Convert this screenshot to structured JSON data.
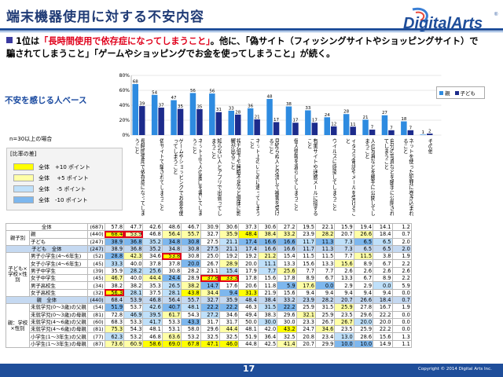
{
  "title": "端末機器使用に対する不安内容",
  "brand": "DigitalArts",
  "brand_reg": "®",
  "lead": {
    "p1": "1位は",
    "h1": "「長時間使用で依存症になってしまうこと」",
    "p2": "。他に、「偽サイト（フィッシングサイトやショッピングサイト）で騙されてしまうこと」「ゲームやショッピングでお金を使ってしまうこと」が続く。"
  },
  "note": "不安を感じる人ベース",
  "n_note": "n=30以上の場合",
  "diff_legend": {
    "title": "[比率の差]",
    "items": [
      {
        "label": "全体　+10 ポイント",
        "color": "#ffff00"
      },
      {
        "label": "全体　 +5 ポイント",
        "color": "#ffffa6"
      },
      {
        "label": "全体　 -5 ポイント",
        "color": "#bfe0fa"
      },
      {
        "label": "全体　-10 ポイント",
        "color": "#7db7ee"
      }
    ]
  },
  "chart_data": {
    "type": "bar",
    "ylim": [
      0,
      80
    ],
    "yticks": [
      "0%",
      "20%",
      "40%",
      "60%",
      "80%"
    ],
    "legend_position": "top-right",
    "series": [
      {
        "name": "親",
        "color": "#2e8be0",
        "values": [
          68.4,
          53.9,
          46.8,
          56.4,
          55.7,
          32.7,
          35.9,
          48.4,
          38.4,
          33.2,
          23.9,
          28.2,
          20.7,
          26.6,
          18.4,
          0.7
        ]
      },
      {
        "name": "子ども",
        "color": "#1c2b8c",
        "values": [
          38.9,
          36.8,
          35.2,
          34.8,
          30.8,
          27.5,
          21.1,
          17.4,
          16.6,
          16.6,
          11.7,
          11.3,
          7.3,
          6.5,
          6.5,
          2.0
        ]
      }
    ],
    "categories": [
      "長時間使用で依存症になってしまうこと",
      "偽サイトで騙されてしまうこと",
      "ゲームやショッピングでお金を使ってしまうこと",
      "ネット上で人の悪口を書いてしまうこと",
      "知らない人とアプリで出会ってしまうこと",
      "視力低下や睡眠不足など健康に影響が出ること",
      "ネット上のいじめに遭ってしまうこと",
      "見知らぬ人と交流して被害を受けること",
      "個人情報を漏らしてしまうこと",
      "有害サイトや迷惑メールに接すること",
      "ウイルスに感染してしまうこと",
      "イタズラ電話やメールを受けること",
      "人の写真などを勝手に公開してしまうこと",
      "自分の写真などを勝手に公開されてしまうこと",
      "ネットを使った犯罪に巻き込まれること",
      "その他"
    ],
    "labels_wrapped": [
      "長時間使用で依存症になってしまうこと",
      "偽サイトで騙されてしまうこと",
      "ゲームやショッピングでお金を使ってしまうこと",
      "ネット上で人の悪口を書いてしまうこと",
      "知らない人とアプリで出会ってしまうこと",
      "視力低下や睡眠不足など健康に影響が出ること",
      "ネット上のいじめに遭ってしまうこと",
      "見知らぬ人と交流して被害を受けること",
      "個人情報を漏らしてしまうこと",
      "有害サイトや迷惑メールに接すること",
      "ウイルスに感染してしまうこと",
      "イタズラ電話やメールを受けること",
      "人の写真などを勝手に公開してしまうこと",
      "自分の写真などを勝手に公開されてしまうこと",
      "ネットを使った犯罪に巻き込まれること",
      "その他"
    ]
  },
  "table": {
    "rows": [
      {
        "group": "",
        "label": "全体",
        "n": "(687)",
        "v": [
          "57.8",
          "47.7",
          "42.6",
          "48.6",
          "46.7",
          "30.9",
          "30.6",
          "37.3",
          "30.6",
          "27.2",
          "19.5",
          "22.1",
          "15.9",
          "19.4",
          "14.1",
          "1.2"
        ],
        "cls": [
          "",
          "",
          "",
          "",
          "",
          "",
          "",
          "",
          "",
          "",
          "",
          "",
          "",
          "",
          "",
          ""
        ],
        "section": false
      },
      {
        "group": "親子別",
        "label": "親",
        "n": "(440)",
        "v": [
          "68.4",
          "53.9",
          "46.8",
          "56.4",
          "55.7",
          "32.7",
          "35.9",
          "48.4",
          "38.4",
          "33.2",
          "23.9",
          "28.2",
          "20.7",
          "26.6",
          "18.4",
          "0.7"
        ],
        "cls": [
          "c10",
          "c5",
          "",
          "c5",
          "c5",
          "",
          "c5",
          "c10",
          "c5",
          "c5",
          "",
          "c5",
          "",
          "c5",
          "",
          ""
        ],
        "box": [
          0,
          1
        ],
        "section": false
      },
      {
        "group": "",
        "label": "子ども",
        "n": "(247)",
        "v": [
          "38.9",
          "36.8",
          "35.2",
          "34.8",
          "30.8",
          "27.5",
          "21.1",
          "17.4",
          "16.6",
          "16.6",
          "11.7",
          "11.3",
          "7.3",
          "6.5",
          "6.5",
          "2.0"
        ],
        "cls": [
          "cm10",
          "cm10",
          "cm5",
          "cm10",
          "cm10",
          "",
          "cm5",
          "cm10",
          "cm10",
          "cm10",
          "cm5",
          "cm10",
          "cm5",
          "cm10",
          "cm5",
          ""
        ],
        "section": false
      },
      {
        "group": "",
        "label": "子ども　全体",
        "n": "(247)",
        "v": [
          "38.9",
          "36.8",
          "35.2",
          "34.8",
          "30.8",
          "27.5",
          "21.1",
          "17.4",
          "16.6",
          "16.6",
          "11.7",
          "11.3",
          "7.3",
          "6.5",
          "6.5",
          "2.0"
        ],
        "cls": [
          "",
          "",
          "",
          "",
          "",
          "",
          "",
          "",
          "",
          "",
          "",
          "",
          "",
          "",
          "",
          ""
        ],
        "section": true
      },
      {
        "group": "子ども×学校×性別",
        "label": "男子小学生(4〜6年生)",
        "n": "(52)",
        "v": [
          "28.8",
          "42.3",
          "34.6",
          "53.8",
          "30.8",
          "25.0",
          "19.2",
          "19.2",
          "21.2",
          "15.4",
          "11.5",
          "11.5",
          "7.7",
          "11.5",
          "3.8",
          "1.9"
        ],
        "cls": [
          "cm10",
          "c5",
          "",
          "c10",
          "",
          "",
          "",
          "",
          "c5",
          "",
          "",
          "",
          "",
          "c5",
          "",
          ""
        ],
        "box": [
          3
        ],
        "section": false
      },
      {
        "group": "",
        "label": "女子小学生(4〜6年生)",
        "n": "(45)",
        "v": [
          "33.3",
          "40.0",
          "37.8",
          "37.8",
          "20.0",
          "26.7",
          "28.9",
          "20.0",
          "11.1",
          "13.3",
          "15.6",
          "13.3",
          "15.6",
          "8.9",
          "6.7",
          "2.2"
        ],
        "cls": [
          "cm5",
          "",
          "",
          "",
          "cm10",
          "",
          "c5",
          "",
          "cm5",
          "",
          "",
          "",
          "c5",
          "",
          "",
          ""
        ],
        "section": false
      },
      {
        "group": "",
        "label": "男子中学生",
        "n": "(39)",
        "v": [
          "35.9",
          "28.2",
          "25.6",
          "30.8",
          "28.2",
          "23.1",
          "15.4",
          "17.9",
          "7.7",
          "25.6",
          "7.7",
          "7.7",
          "2.6",
          "2.6",
          "2.6",
          "2.6"
        ],
        "cls": [
          "",
          "cm5",
          "cm5",
          "",
          "",
          "",
          "cm5",
          "",
          "cm5",
          "c5",
          "",
          "",
          "",
          "",
          "",
          ""
        ],
        "section": false
      },
      {
        "group": "",
        "label": "女子中学生",
        "n": "(45)",
        "v": [
          "46.7",
          "40.0",
          "44.4",
          "24.4",
          "28.9",
          "37.8",
          "33.3",
          "17.8",
          "15.6",
          "17.8",
          "8.9",
          "6.7",
          "13.3",
          "6.7",
          "8.9",
          "2.2"
        ],
        "cls": [
          "c5",
          "",
          "c5",
          "cm10",
          "",
          "c10",
          "c10",
          "",
          "",
          "",
          "",
          "",
          "",
          "",
          "",
          ""
        ],
        "box": [
          5,
          6
        ],
        "section": false
      },
      {
        "group": "",
        "label": "男子高校生",
        "n": "(34)",
        "v": [
          "38.2",
          "38.2",
          "35.3",
          "26.5",
          "38.2",
          "14.7",
          "17.6",
          "20.6",
          "11.8",
          "5.9",
          "17.6",
          "0.0",
          "2.9",
          "2.9",
          "0.0",
          "5.9"
        ],
        "cls": [
          "",
          "",
          "",
          "cm5",
          "c5",
          "cm10",
          "",
          "",
          "",
          "cm10",
          "c5",
          "cm10",
          "",
          "",
          "cm5",
          ""
        ],
        "section": false
      },
      {
        "group": "",
        "label": "女子高校生",
        "n": "(32)",
        "v": [
          "56.3",
          "28.1",
          "37.5",
          "28.1",
          "43.8",
          "34.4",
          "9.4",
          "31.3",
          "21.9",
          "15.6",
          "9.4",
          "9.4",
          "9.4",
          "9.4",
          "9.4",
          "0.0"
        ],
        "cls": [
          "c10",
          "cm5",
          "",
          "cm5",
          "c10",
          "c5",
          "cm10",
          "c10",
          "",
          "",
          "",
          "",
          "",
          "",
          "",
          ""
        ],
        "box": [
          0
        ],
        "section": false
      },
      {
        "group": "",
        "label": "親　全体",
        "n": "(440)",
        "v": [
          "68.4",
          "53.9",
          "46.8",
          "56.4",
          "55.7",
          "32.7",
          "35.9",
          "48.4",
          "38.4",
          "33.2",
          "23.9",
          "28.2",
          "20.7",
          "26.6",
          "18.4",
          "0.7"
        ],
        "cls": [
          "",
          "",
          "",
          "",
          "",
          "",
          "",
          "",
          "",
          "",
          "",
          "",
          "",
          "",
          "",
          ""
        ],
        "section": true
      },
      {
        "group": "親：学校×性別",
        "label": "未就学児(0〜3歳)の父親",
        "n": "(54)",
        "v": [
          "51.9",
          "53.7",
          "42.6",
          "40.7",
          "48.1",
          "22.2",
          "22.2",
          "46.3",
          "31.5",
          "22.2",
          "25.9",
          "31.5",
          "25.9",
          "27.8",
          "16.7",
          "1.9"
        ],
        "cls": [
          "cm10",
          "",
          "cm5",
          "cm10",
          "cm5",
          "cm10",
          "cm10",
          "",
          "cm5",
          "cm10",
          "",
          "",
          "c5",
          "",
          "",
          ""
        ],
        "section": false
      },
      {
        "group": "",
        "label": "未就学児(0〜3歳)の母親",
        "n": "(81)",
        "v": [
          "72.8",
          "46.9",
          "39.5",
          "61.7",
          "54.3",
          "27.2",
          "34.6",
          "49.4",
          "38.3",
          "29.6",
          "32.1",
          "25.9",
          "23.5",
          "29.6",
          "22.2",
          "0.0"
        ],
        "cls": [
          "",
          "cm5",
          "cm5",
          "c5",
          "",
          "cm5",
          "",
          "",
          "",
          "",
          "c5",
          "",
          "",
          "",
          "",
          ""
        ],
        "section": false
      },
      {
        "group": "",
        "label": "未就学児(4〜6歳)の父親",
        "n": "(60)",
        "v": [
          "68.3",
          "53.3",
          "41.7",
          "53.3",
          "43.3",
          "31.7",
          "31.7",
          "50.0",
          "30.0",
          "30.0",
          "23.3",
          "26.7",
          "26.7",
          "20.0",
          "20.0",
          "0.0"
        ],
        "cls": [
          "",
          "",
          "cm5",
          "",
          "cm10",
          "",
          "",
          "",
          "cm5",
          "",
          "",
          "",
          "c5",
          "cm5",
          "",
          ""
        ],
        "section": false
      },
      {
        "group": "",
        "label": "未就学児(4〜6歳)の母親",
        "n": "(81)",
        "v": [
          "75.3",
          "54.3",
          "48.1",
          "53.1",
          "58.0",
          "29.6",
          "44.4",
          "48.1",
          "42.0",
          "43.2",
          "24.7",
          "34.6",
          "23.5",
          "25.9",
          "22.2",
          "0.0"
        ],
        "cls": [
          "c5",
          "",
          "",
          "",
          "",
          "",
          "c5",
          "",
          "",
          "c10",
          "",
          "c5",
          "",
          "",
          "",
          ""
        ],
        "section": false
      },
      {
        "group": "",
        "label": "小学生(1〜3年生)の父親",
        "n": "(77)",
        "v": [
          "62.3",
          "53.2",
          "46.8",
          "63.6",
          "53.2",
          "32.5",
          "32.5",
          "51.9",
          "36.4",
          "32.5",
          "20.8",
          "23.4",
          "13.0",
          "28.6",
          "15.6",
          "1.3"
        ],
        "cls": [
          "cm5",
          "",
          "",
          "c5",
          "",
          "",
          "",
          "",
          "",
          "",
          "",
          "",
          "cm5",
          "",
          "",
          ""
        ],
        "section": false
      },
      {
        "group": "",
        "label": "小学生(1〜3年生)の母親",
        "n": "(87)",
        "v": [
          "73.6",
          "60.9",
          "58.6",
          "69.0",
          "67.8",
          "47.1",
          "46.0",
          "44.8",
          "42.5",
          "41.4",
          "20.7",
          "29.9",
          "10.0",
          "10.0",
          "14.9",
          "1.1"
        ],
        "cls": [
          "c5",
          "c5",
          "c10",
          "c10",
          "c10",
          "c10",
          "c10",
          "",
          "",
          "c5",
          "",
          "",
          "cm10",
          "cm10",
          "",
          ""
        ],
        "section": false
      }
    ]
  },
  "page_number": "17",
  "copyright": "Copyright © 2014 Digital Arts Inc."
}
